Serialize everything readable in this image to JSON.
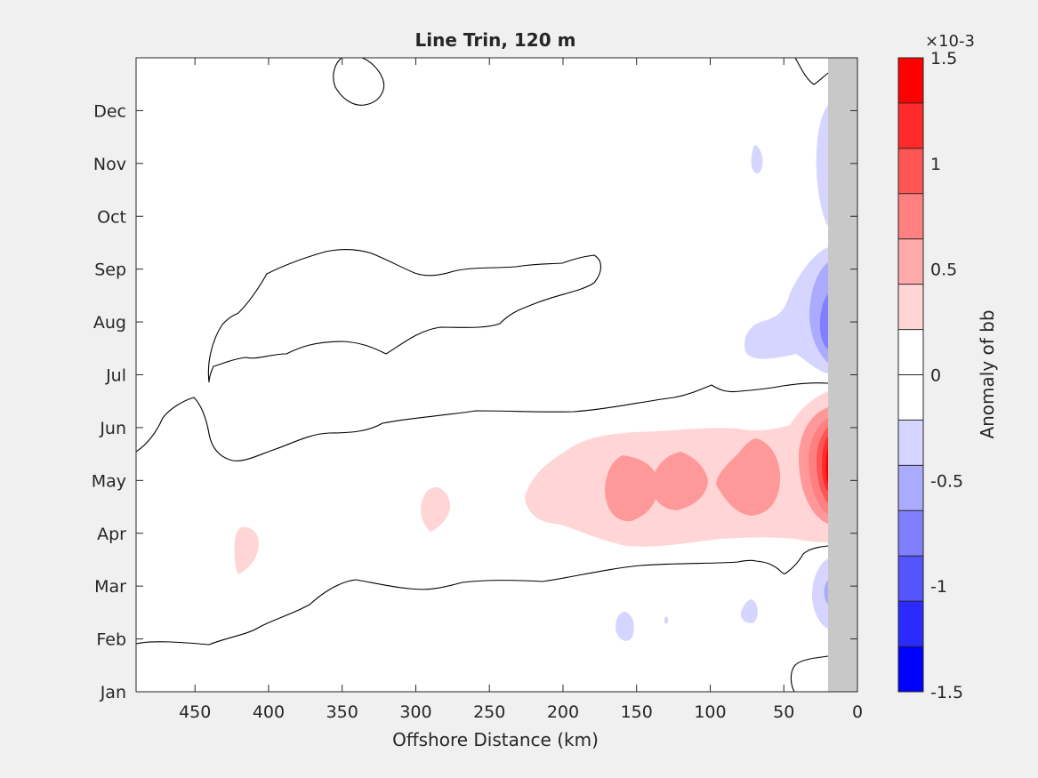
{
  "chart_data": {
    "type": "heatmap",
    "title": "Line Trin, 120 m",
    "xlabel": "Offshore Distance (km)",
    "xlim": [
      0,
      490
    ],
    "x_reversed": true,
    "x_ticks": [
      450,
      400,
      350,
      300,
      250,
      200,
      150,
      100,
      50,
      0
    ],
    "x_tick_labels": [
      "450",
      "400",
      "350",
      "300",
      "250",
      "200",
      "150",
      "100",
      "50",
      "0"
    ],
    "y_ticks": [
      1,
      2,
      3,
      4,
      5,
      6,
      7,
      8,
      9,
      10,
      11,
      12
    ],
    "y_tick_labels": [
      "Jan",
      "Feb",
      "Mar",
      "Apr",
      "May",
      "Jun",
      "Jul",
      "Aug",
      "Sep",
      "Oct",
      "Nov",
      "Dec"
    ],
    "ylim": [
      1,
      13
    ],
    "land_mask_x": [
      0,
      20
    ],
    "colorbar": {
      "label": "Anomaly of bb",
      "exponent_label": "×10-3",
      "range": [
        -1.5,
        1.5
      ],
      "ticks": [
        -1.5,
        -1,
        -0.5,
        0,
        0.5,
        1,
        1.5
      ],
      "tick_labels": [
        "-1.5",
        "-1",
        "-0.5",
        "0",
        "0.5",
        "1",
        "1.5"
      ],
      "levels": [
        -1.5,
        -1.25,
        -1,
        -0.75,
        -0.5,
        -0.25,
        0,
        0.25,
        0.5,
        0.75,
        1,
        1.25,
        1.5
      ],
      "colors": [
        "#0000ff",
        "#2b2bff",
        "#5555ff",
        "#8080ff",
        "#aaaaff",
        "#d5d5ff",
        "#ffffff",
        "#ffffff",
        "#ffd5d5",
        "#ffaaaa",
        "#ff8080",
        "#ff5555",
        "#ff2b2b",
        "#ff0000"
      ]
    },
    "anomaly_features": [
      {
        "sign": "positive",
        "level": 0.25,
        "x_range": [
          20,
          225
        ],
        "month_range": [
          4.0,
          5.95
        ]
      },
      {
        "sign": "positive",
        "level": 0.5,
        "x_range": [
          60,
          170
        ],
        "month_range": [
          4.5,
          5.5
        ]
      },
      {
        "sign": "positive",
        "level": 1.5,
        "x_range": [
          20,
          30
        ],
        "month_range": [
          4.7,
          5.45
        ]
      },
      {
        "sign": "negative",
        "level": -0.5,
        "x_range": [
          20,
          60
        ],
        "month_range": [
          7.8,
          8.4
        ]
      },
      {
        "sign": "negative",
        "level": -0.25,
        "x_range": [
          20,
          90
        ],
        "month_range": [
          7.0,
          9.3
        ]
      },
      {
        "sign": "negative",
        "level": -0.25,
        "x_range": [
          20,
          30
        ],
        "month_range": [
          10.0,
          12.0
        ]
      },
      {
        "sign": "negative",
        "level": -0.25,
        "x_range": [
          20,
          30
        ],
        "month_range": [
          2.4,
          3.3
        ]
      }
    ]
  }
}
